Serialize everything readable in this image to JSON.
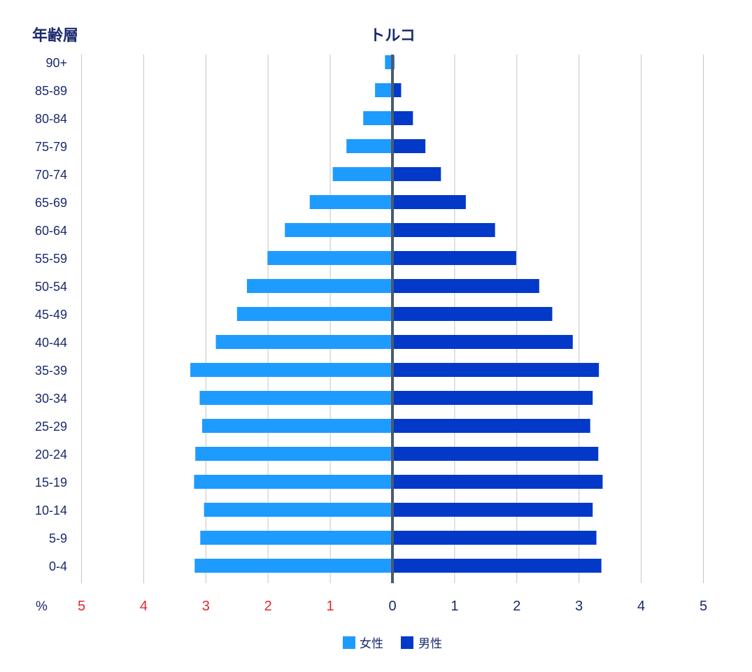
{
  "chart_data": {
    "type": "bar",
    "orientation": "horizontal-population-pyramid",
    "title": "トルコ",
    "ylabel": "年齢層",
    "xlabel": "%",
    "xlim": [
      -5,
      5
    ],
    "left_tick_labels": [
      "5",
      "4",
      "3",
      "2",
      "1"
    ],
    "right_tick_labels": [
      "0",
      "1",
      "2",
      "3",
      "4",
      "5"
    ],
    "categories": [
      "90+",
      "85-89",
      "80-84",
      "75-79",
      "70-74",
      "65-69",
      "60-64",
      "55-59",
      "50-54",
      "45-49",
      "40-44",
      "35-39",
      "30-34",
      "25-29",
      "20-24",
      "15-19",
      "10-14",
      "5-9",
      "0-4"
    ],
    "series": [
      {
        "name": "女性",
        "side": "left",
        "color": "#1e9bff",
        "values": [
          0.12,
          0.28,
          0.47,
          0.74,
          0.96,
          1.33,
          1.73,
          2.01,
          2.34,
          2.5,
          2.84,
          3.25,
          3.1,
          3.06,
          3.17,
          3.19,
          3.03,
          3.09,
          3.18
        ]
      },
      {
        "name": "男性",
        "side": "right",
        "color": "#0339c9",
        "values": [
          0.03,
          0.14,
          0.33,
          0.53,
          0.78,
          1.18,
          1.65,
          1.99,
          2.36,
          2.57,
          2.9,
          3.32,
          3.22,
          3.18,
          3.31,
          3.38,
          3.22,
          3.28,
          3.36
        ]
      }
    ],
    "legend": [
      "女性",
      "男性"
    ],
    "legend_position": "bottom-center",
    "grid": true
  }
}
